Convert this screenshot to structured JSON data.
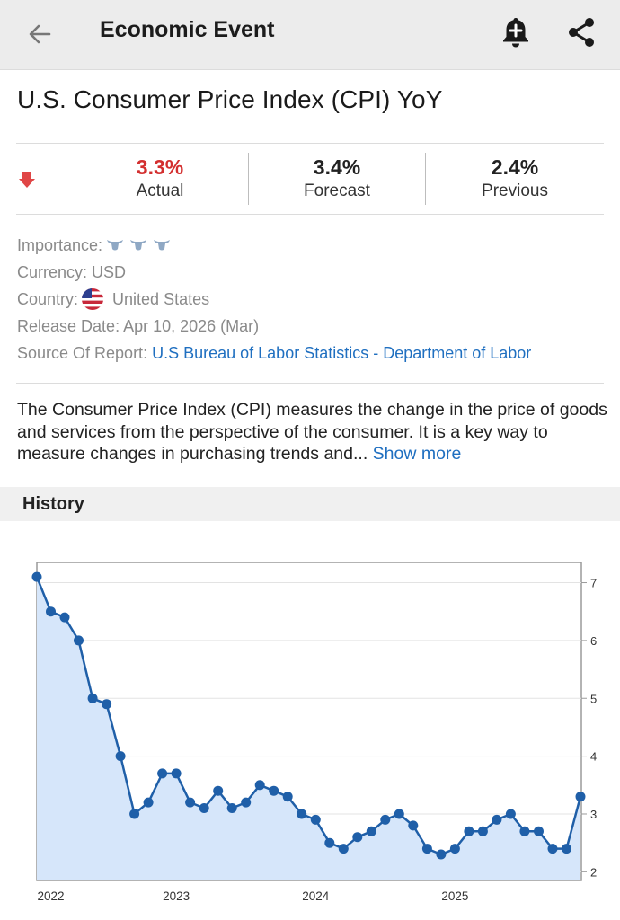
{
  "appbar": {
    "title": "Economic Event",
    "back_icon": "back-arrow-icon",
    "alert_icon": "add-alert-bell-icon",
    "share_icon": "share-icon"
  },
  "event": {
    "title": "U.S. Consumer Price Index (CPI) YoY"
  },
  "stats": {
    "trend_icon": "down-arrow-icon",
    "actual": {
      "value": "3.3%",
      "label": "Actual",
      "color": "#d32f2f"
    },
    "forecast": {
      "value": "3.4%",
      "label": "Forecast"
    },
    "previous": {
      "value": "2.4%",
      "label": "Previous"
    }
  },
  "details": {
    "importance_label": "Importance:",
    "importance_level": 3,
    "currency": "Currency: USD",
    "country_label": "Country:",
    "country_value": "United States",
    "release_date": "Release Date: Apr 10, 2026 (Mar)",
    "source_label": "Source Of Report:",
    "source_value": "U.S Bureau of Labor Statistics - Department of Labor"
  },
  "description": {
    "text": "The Consumer Price Index (CPI) measures the change in the price of goods and services from the perspective of the consumer. It is a key way to measure changes in purchasing trends and...",
    "show_more": "Show more"
  },
  "history": {
    "title": "History"
  },
  "chart_data": {
    "type": "area",
    "x_labels": [
      "2022",
      "2023",
      "2024",
      "2025"
    ],
    "y_ticks": [
      "2",
      "3",
      "4",
      "5",
      "6",
      "7"
    ],
    "ylim": [
      1.85,
      7.35
    ],
    "grid": true,
    "series_color": "#1f5fa8",
    "fill_color": "#d6e6fa",
    "values": [
      7.1,
      6.5,
      6.4,
      6.0,
      5.0,
      4.9,
      4.0,
      3.0,
      3.2,
      3.7,
      3.7,
      3.2,
      3.1,
      3.4,
      3.1,
      3.2,
      3.5,
      3.4,
      3.3,
      3.0,
      2.9,
      2.5,
      2.4,
      2.6,
      2.7,
      2.9,
      3.0,
      2.8,
      2.4,
      2.3,
      2.4,
      2.7,
      2.7,
      2.9,
      3.0,
      2.7,
      2.7,
      2.4,
      2.4,
      3.3
    ]
  }
}
